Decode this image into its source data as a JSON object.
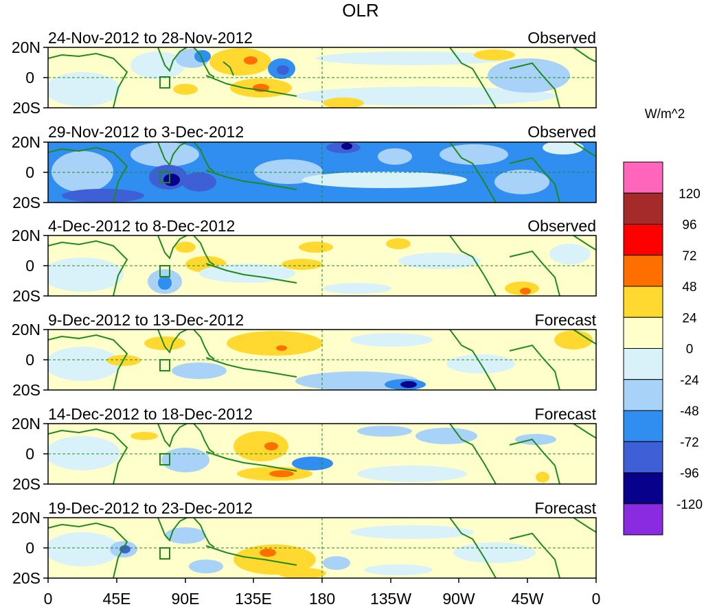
{
  "title": "OLR",
  "colorbar": {
    "unit_label": "W/m^2",
    "levels": [
      "120",
      "96",
      "72",
      "48",
      "24",
      "0",
      "-24",
      "-48",
      "-72",
      "-96",
      "-120"
    ],
    "colors": [
      "#ff66bb",
      "#a52a2a",
      "#ff0000",
      "#ff6f00",
      "#ffd830",
      "#ffffcc",
      "#d9f2fa",
      "#a8d2f7",
      "#2f8ef0",
      "#3e5fd6",
      "#07018b",
      "#8a2be2"
    ]
  },
  "lat_labels": [
    "20N",
    "0",
    "20S"
  ],
  "lon_labels": [
    "0",
    "45E",
    "90E",
    "135E",
    "180",
    "135W",
    "90W",
    "45W",
    "0"
  ],
  "panels": [
    {
      "period": "24-Nov-2012 to 28-Nov-2012",
      "type": "Observed"
    },
    {
      "period": "29-Nov-2012 to 3-Dec-2012",
      "type": "Observed"
    },
    {
      "period": "4-Dec-2012 to 8-Dec-2012",
      "type": "Observed"
    },
    {
      "period": "9-Dec-2012 to 13-Dec-2012",
      "type": "Forecast"
    },
    {
      "period": "14-Dec-2012 to 18-Dec-2012",
      "type": "Forecast"
    },
    {
      "period": "19-Dec-2012 to 23-Dec-2012",
      "type": "Forecast"
    }
  ]
}
